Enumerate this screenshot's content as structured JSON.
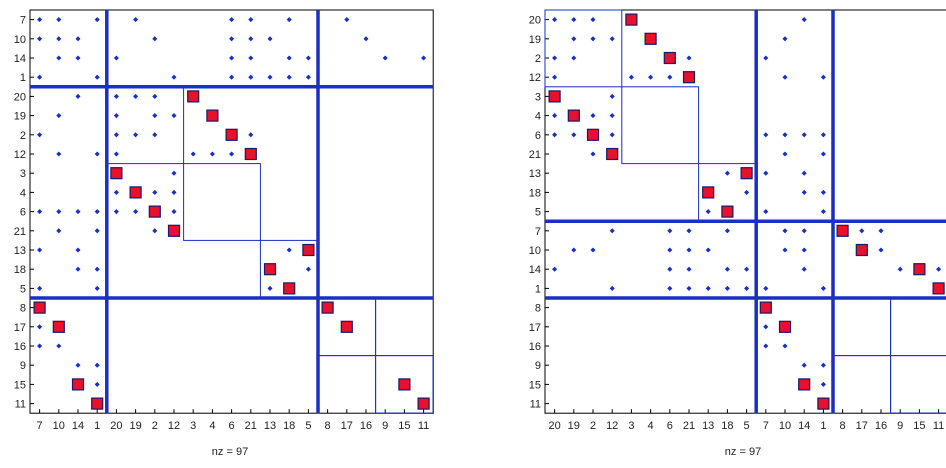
{
  "chart_data": [
    {
      "type": "spy",
      "xlabel": "nz = 97",
      "order": [
        "7",
        "10",
        "14",
        "1",
        "20",
        "19",
        "2",
        "12",
        "3",
        "4",
        "6",
        "21",
        "13",
        "18",
        "5",
        "8",
        "17",
        "16",
        "9",
        "15",
        "11"
      ],
      "blocks": [
        [
          0,
          15,
          21
        ],
        [
          0,
          4,
          15
        ],
        [
          4,
          15,
          15
        ],
        [
          15,
          21,
          21
        ]
      ],
      "sub_blocks": [
        [
          15,
          18,
          21
        ],
        [
          18,
          21,
          21
        ],
        [
          15,
          18,
          18
        ],
        [
          18,
          21,
          18
        ],
        [
          4,
          8,
          15
        ],
        [
          8,
          12,
          15
        ],
        [
          12,
          15,
          15
        ]
      ],
      "diag_markers": [
        [
          "8",
          "8"
        ],
        [
          "17",
          "17"
        ],
        [
          "15",
          "15"
        ],
        [
          "11",
          "11"
        ],
        [
          "20",
          "3"
        ],
        [
          "19",
          "4"
        ],
        [
          "2",
          "6"
        ],
        [
          "12",
          "21"
        ],
        [
          "3",
          "20"
        ],
        [
          "4",
          "19"
        ],
        [
          "6",
          "2"
        ],
        [
          "21",
          "12"
        ],
        [
          "13",
          "5"
        ],
        [
          "18",
          "13"
        ],
        [
          "5",
          "18"
        ],
        [
          "8",
          "7"
        ],
        [
          "17",
          "10"
        ],
        [
          "15",
          "14"
        ],
        [
          "11",
          "1"
        ]
      ],
      "dots": [
        [
          "7",
          "7"
        ],
        [
          "7",
          "10"
        ],
        [
          "7",
          "1"
        ],
        [
          "7",
          "19"
        ],
        [
          "7",
          "6"
        ],
        [
          "7",
          "21"
        ],
        [
          "7",
          "18"
        ],
        [
          "7",
          "17"
        ],
        [
          "10",
          "7"
        ],
        [
          "10",
          "10"
        ],
        [
          "10",
          "14"
        ],
        [
          "10",
          "2"
        ],
        [
          "10",
          "6"
        ],
        [
          "10",
          "21"
        ],
        [
          "10",
          "13"
        ],
        [
          "10",
          "16"
        ],
        [
          "14",
          "10"
        ],
        [
          "14",
          "14"
        ],
        [
          "14",
          "20"
        ],
        [
          "14",
          "6"
        ],
        [
          "14",
          "21"
        ],
        [
          "14",
          "18"
        ],
        [
          "14",
          "5"
        ],
        [
          "14",
          "9"
        ],
        [
          "14",
          "11"
        ],
        [
          "1",
          "7"
        ],
        [
          "1",
          "1"
        ],
        [
          "1",
          "12"
        ],
        [
          "1",
          "6"
        ],
        [
          "1",
          "21"
        ],
        [
          "1",
          "13"
        ],
        [
          "1",
          "18"
        ],
        [
          "1",
          "5"
        ],
        [
          "20",
          "14"
        ],
        [
          "20",
          "20"
        ],
        [
          "20",
          "19"
        ],
        [
          "20",
          "2"
        ],
        [
          "19",
          "10"
        ],
        [
          "19",
          "20"
        ],
        [
          "19",
          "2"
        ],
        [
          "19",
          "12"
        ],
        [
          "2",
          "7"
        ],
        [
          "2",
          "20"
        ],
        [
          "2",
          "19"
        ],
        [
          "2",
          "2"
        ],
        [
          "2",
          "21"
        ],
        [
          "12",
          "10"
        ],
        [
          "12",
          "1"
        ],
        [
          "12",
          "20"
        ],
        [
          "12",
          "3"
        ],
        [
          "12",
          "4"
        ],
        [
          "12",
          "6"
        ],
        [
          "3",
          "12"
        ],
        [
          "4",
          "20"
        ],
        [
          "4",
          "2"
        ],
        [
          "4",
          "12"
        ],
        [
          "6",
          "7"
        ],
        [
          "6",
          "10"
        ],
        [
          "6",
          "14"
        ],
        [
          "6",
          "1"
        ],
        [
          "6",
          "20"
        ],
        [
          "6",
          "19"
        ],
        [
          "6",
          "12"
        ],
        [
          "21",
          "10"
        ],
        [
          "21",
          "1"
        ],
        [
          "21",
          "2"
        ],
        [
          "13",
          "7"
        ],
        [
          "13",
          "14"
        ],
        [
          "13",
          "18"
        ],
        [
          "18",
          "14"
        ],
        [
          "18",
          "1"
        ],
        [
          "18",
          "5"
        ],
        [
          "5",
          "7"
        ],
        [
          "5",
          "1"
        ],
        [
          "5",
          "13"
        ],
        [
          "17",
          "7"
        ],
        [
          "16",
          "7"
        ],
        [
          "16",
          "10"
        ],
        [
          "9",
          "14"
        ],
        [
          "9",
          "1"
        ],
        [
          "15",
          "1"
        ]
      ]
    },
    {
      "type": "spy",
      "xlabel": "nz = 97",
      "order": [
        "20",
        "19",
        "2",
        "12",
        "3",
        "4",
        "6",
        "21",
        "13",
        "18",
        "5",
        "7",
        "10",
        "14",
        "1",
        "8",
        "17",
        "16",
        "9",
        "15",
        "11"
      ],
      "blocks": [
        [
          0,
          11,
          15
        ],
        [
          11,
          15,
          15
        ],
        [
          15,
          21,
          21
        ],
        [
          11,
          15,
          21
        ]
      ],
      "sub_blocks": [
        [
          0,
          4,
          11
        ],
        [
          4,
          8,
          11
        ],
        [
          8,
          11,
          11
        ],
        [
          11,
          15,
          15
        ],
        [
          15,
          18,
          21
        ],
        [
          18,
          21,
          21
        ],
        [
          11,
          15,
          15
        ],
        [
          15,
          18,
          18
        ],
        [
          18,
          21,
          18
        ]
      ],
      "diag_markers": [
        [
          "20",
          "3"
        ],
        [
          "19",
          "4"
        ],
        [
          "2",
          "6"
        ],
        [
          "12",
          "21"
        ],
        [
          "3",
          "20"
        ],
        [
          "4",
          "19"
        ],
        [
          "6",
          "2"
        ],
        [
          "21",
          "12"
        ],
        [
          "13",
          "5"
        ],
        [
          "18",
          "13"
        ],
        [
          "5",
          "18"
        ],
        [
          "7",
          "8"
        ],
        [
          "10",
          "17"
        ],
        [
          "14",
          "15"
        ],
        [
          "1",
          "11"
        ],
        [
          "8",
          "7"
        ],
        [
          "17",
          "10"
        ],
        [
          "15",
          "14"
        ],
        [
          "11",
          "1"
        ]
      ],
      "dots": [
        [
          "20",
          "20"
        ],
        [
          "20",
          "19"
        ],
        [
          "20",
          "2"
        ],
        [
          "20",
          "14"
        ],
        [
          "19",
          "19"
        ],
        [
          "19",
          "2"
        ],
        [
          "19",
          "12"
        ],
        [
          "19",
          "10"
        ],
        [
          "2",
          "20"
        ],
        [
          "2",
          "19"
        ],
        [
          "2",
          "21"
        ],
        [
          "2",
          "7"
        ],
        [
          "12",
          "20"
        ],
        [
          "12",
          "4"
        ],
        [
          "12",
          "6"
        ],
        [
          "12",
          "3"
        ],
        [
          "12",
          "1"
        ],
        [
          "12",
          "10"
        ],
        [
          "3",
          "12"
        ],
        [
          "4",
          "20"
        ],
        [
          "4",
          "2"
        ],
        [
          "4",
          "12"
        ],
        [
          "6",
          "20"
        ],
        [
          "6",
          "19"
        ],
        [
          "6",
          "12"
        ],
        [
          "6",
          "7"
        ],
        [
          "6",
          "10"
        ],
        [
          "6",
          "14"
        ],
        [
          "6",
          "1"
        ],
        [
          "21",
          "2"
        ],
        [
          "21",
          "1"
        ],
        [
          "21",
          "10"
        ],
        [
          "13",
          "18"
        ],
        [
          "13",
          "7"
        ],
        [
          "13",
          "14"
        ],
        [
          "18",
          "5"
        ],
        [
          "18",
          "1"
        ],
        [
          "18",
          "14"
        ],
        [
          "5",
          "13"
        ],
        [
          "5",
          "7"
        ],
        [
          "5",
          "1"
        ],
        [
          "7",
          "12"
        ],
        [
          "7",
          "6"
        ],
        [
          "7",
          "10"
        ],
        [
          "7",
          "14"
        ],
        [
          "7",
          "21"
        ],
        [
          "7",
          "18"
        ],
        [
          "7",
          "17"
        ],
        [
          "7",
          "16"
        ],
        [
          "10",
          "19"
        ],
        [
          "10",
          "2"
        ],
        [
          "10",
          "6"
        ],
        [
          "10",
          "21"
        ],
        [
          "10",
          "13"
        ],
        [
          "10",
          "14"
        ],
        [
          "10",
          "10"
        ],
        [
          "10",
          "16"
        ],
        [
          "14",
          "20"
        ],
        [
          "14",
          "6"
        ],
        [
          "14",
          "21"
        ],
        [
          "14",
          "18"
        ],
        [
          "14",
          "5"
        ],
        [
          "14",
          "14"
        ],
        [
          "14",
          "9"
        ],
        [
          "14",
          "11"
        ],
        [
          "1",
          "12"
        ],
        [
          "1",
          "6"
        ],
        [
          "1",
          "21"
        ],
        [
          "1",
          "13"
        ],
        [
          "1",
          "18"
        ],
        [
          "1",
          "5"
        ],
        [
          "1",
          "7"
        ],
        [
          "1",
          "1"
        ],
        [
          "17",
          "7"
        ],
        [
          "16",
          "7"
        ],
        [
          "16",
          "10"
        ],
        [
          "9",
          "14"
        ],
        [
          "9",
          "1"
        ],
        [
          "15",
          "1"
        ]
      ]
    }
  ]
}
